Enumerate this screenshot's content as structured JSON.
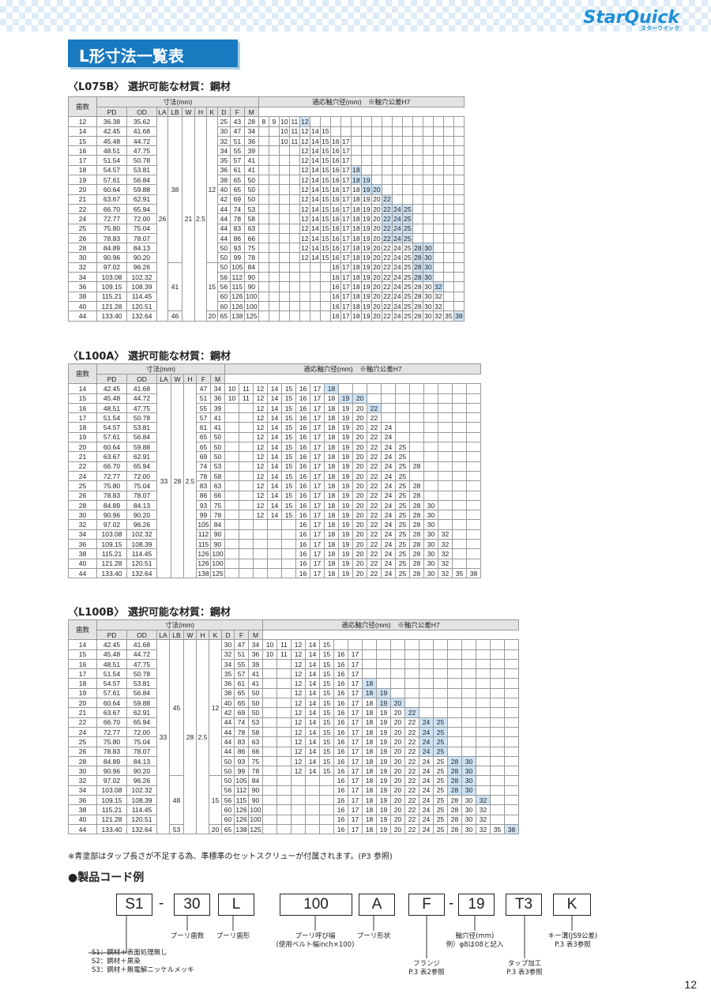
{
  "brand": "StarQuick",
  "brand_sub": "スターウイック",
  "page_title": "L形寸法一覧表",
  "page_number": "12",
  "note": "※青塗部はタップ長さが不足する為、準標準のセットスクリューが付属されます。(P3 参照)",
  "sections": [
    {
      "title": "〈L075B〉 選択可能な材質：鋼材"
    },
    {
      "title": "〈L100A〉 選択可能な材質：鋼材"
    },
    {
      "title": "〈L100B〉 選択可能な材質：鋼材"
    }
  ],
  "headers": {
    "teeth": "歯数",
    "dims": "寸法(mm)",
    "bore": "適応軸穴径(mm)　※軸穴公差H7",
    "PD": "PD",
    "OD": "OD",
    "LA": "LA",
    "LB": "LB",
    "W": "W",
    "H": "H",
    "K": "K",
    "D": "D",
    "F": "F",
    "M": "M"
  },
  "code": {
    "title": "●製品コード例",
    "boxes": [
      "S1",
      "30",
      "L",
      "100",
      "A",
      "F",
      "19",
      "T3",
      "K"
    ],
    "labels": {
      "teeth": "プーリ歯数",
      "shape": "プーリ歯形",
      "width": "プーリ呼び幅\n(使用ベルト幅inch×100)",
      "form": "プーリ形状",
      "bore": "軸穴径(mm)\n例）φ8は08と記入",
      "key": "キー溝(JS9公差)\nP.3 表3参照",
      "flange": "フランジ\nP.3 表2参照",
      "tap": "タップ加工\nP.3 表3参照",
      "mat": "S1：鋼材＋表面処理無し\nS2：鋼材＋黒染\nS3：鋼材＋無電解ニッケルメッキ"
    }
  },
  "tables": {
    "L075B": {
      "rows": [
        [
          "12",
          "36.38",
          "35.62",
          "25",
          "43",
          "28"
        ],
        [
          "14",
          "42.45",
          "41.68",
          "30",
          "47",
          "34"
        ],
        [
          "15",
          "45.48",
          "44.72",
          "32",
          "51",
          "36"
        ],
        [
          "16",
          "48.51",
          "47.75",
          "34",
          "55",
          "39"
        ],
        [
          "17",
          "51.54",
          "50.78",
          "35",
          "57",
          "41"
        ],
        [
          "18",
          "54.57",
          "53.81",
          "36",
          "61",
          "41"
        ],
        [
          "19",
          "57.61",
          "56.84",
          "38",
          "65",
          "50"
        ],
        [
          "20",
          "60.64",
          "59.88",
          "40",
          "65",
          "50"
        ],
        [
          "21",
          "63.67",
          "62.91",
          "42",
          "69",
          "50"
        ],
        [
          "22",
          "66.70",
          "65.94",
          "44",
          "74",
          "53"
        ],
        [
          "24",
          "72.77",
          "72.00",
          "44",
          "78",
          "58"
        ],
        [
          "25",
          "75.80",
          "75.04",
          "44",
          "83",
          "63"
        ],
        [
          "26",
          "78.83",
          "78.07",
          "44",
          "86",
          "66"
        ],
        [
          "28",
          "84.89",
          "84.13",
          "50",
          "93",
          "75"
        ],
        [
          "30",
          "90.96",
          "90.20",
          "50",
          "99",
          "78"
        ],
        [
          "32",
          "97.02",
          "96.26",
          "50",
          "105",
          "84"
        ],
        [
          "34",
          "103.08",
          "102.32",
          "56",
          "112",
          "90"
        ],
        [
          "36",
          "109.15",
          "108.39",
          "56",
          "115",
          "90"
        ],
        [
          "38",
          "115.21",
          "114.45",
          "60",
          "126",
          "100"
        ],
        [
          "40",
          "121.28",
          "120.51",
          "60",
          "126",
          "100"
        ],
        [
          "44",
          "133.40",
          "132.64",
          "65",
          "138",
          "125"
        ]
      ],
      "LA": "26",
      "W": "21",
      "H": "2.5",
      "LB": [
        "38",
        "41",
        "46"
      ],
      "K": [
        "12",
        "15",
        "20"
      ]
    },
    "L100A": {
      "rows": [
        [
          "14",
          "42.45",
          "41.68",
          "47",
          "34"
        ],
        [
          "15",
          "45.48",
          "44.72",
          "51",
          "36"
        ],
        [
          "16",
          "48.51",
          "47.75",
          "55",
          "39"
        ],
        [
          "17",
          "51.54",
          "50.78",
          "57",
          "41"
        ],
        [
          "18",
          "54.57",
          "53.81",
          "61",
          "41"
        ],
        [
          "19",
          "57.61",
          "56.84",
          "65",
          "50"
        ],
        [
          "20",
          "60.64",
          "59.88",
          "65",
          "50"
        ],
        [
          "21",
          "63.67",
          "62.91",
          "69",
          "50"
        ],
        [
          "22",
          "66.70",
          "65.94",
          "74",
          "53"
        ],
        [
          "24",
          "72.77",
          "72.00",
          "78",
          "58"
        ],
        [
          "25",
          "75.80",
          "75.04",
          "83",
          "63"
        ],
        [
          "26",
          "78.83",
          "78.07",
          "86",
          "66"
        ],
        [
          "28",
          "84.89",
          "84.13",
          "93",
          "75"
        ],
        [
          "30",
          "90.96",
          "90.20",
          "99",
          "78"
        ],
        [
          "32",
          "97.02",
          "96.26",
          "105",
          "84"
        ],
        [
          "34",
          "103.08",
          "102.32",
          "112",
          "90"
        ],
        [
          "36",
          "109.15",
          "108.39",
          "115",
          "90"
        ],
        [
          "38",
          "115.21",
          "114.45",
          "126",
          "100"
        ],
        [
          "40",
          "121.28",
          "120.51",
          "126",
          "100"
        ],
        [
          "44",
          "133.40",
          "132.64",
          "138",
          "125"
        ]
      ],
      "LA": "33",
      "W": "28",
      "H": "2.5"
    },
    "L100B": {
      "rows": [
        [
          "14",
          "42.45",
          "41.68",
          "30",
          "47",
          "34"
        ],
        [
          "15",
          "45.48",
          "44.72",
          "32",
          "51",
          "36"
        ],
        [
          "16",
          "48.51",
          "47.75",
          "34",
          "55",
          "39"
        ],
        [
          "17",
          "51.54",
          "50.78",
          "35",
          "57",
          "41"
        ],
        [
          "18",
          "54.57",
          "53.81",
          "36",
          "61",
          "41"
        ],
        [
          "19",
          "57.61",
          "56.84",
          "38",
          "65",
          "50"
        ],
        [
          "20",
          "60.64",
          "59.88",
          "40",
          "65",
          "50"
        ],
        [
          "21",
          "63.67",
          "62.91",
          "42",
          "69",
          "50"
        ],
        [
          "22",
          "66.70",
          "65.94",
          "44",
          "74",
          "53"
        ],
        [
          "24",
          "72.77",
          "72.00",
          "44",
          "78",
          "58"
        ],
        [
          "25",
          "75.80",
          "75.04",
          "44",
          "83",
          "63"
        ],
        [
          "26",
          "78.83",
          "78.07",
          "44",
          "86",
          "66"
        ],
        [
          "28",
          "84.89",
          "84.13",
          "50",
          "93",
          "75"
        ],
        [
          "30",
          "90.96",
          "90.20",
          "50",
          "99",
          "78"
        ],
        [
          "32",
          "97.02",
          "96.26",
          "50",
          "105",
          "84"
        ],
        [
          "34",
          "103.08",
          "102.32",
          "56",
          "112",
          "90"
        ],
        [
          "36",
          "109.15",
          "108.39",
          "56",
          "115",
          "90"
        ],
        [
          "38",
          "115.21",
          "114.45",
          "60",
          "126",
          "100"
        ],
        [
          "40",
          "121.28",
          "120.51",
          "60",
          "126",
          "100"
        ],
        [
          "44",
          "133.40",
          "132.64",
          "65",
          "138",
          "125"
        ]
      ],
      "LA": "33",
      "W": "28",
      "H": "2.5",
      "LB": [
        "45",
        "48",
        "53"
      ],
      "K": [
        "12",
        "15",
        "20"
      ]
    }
  }
}
